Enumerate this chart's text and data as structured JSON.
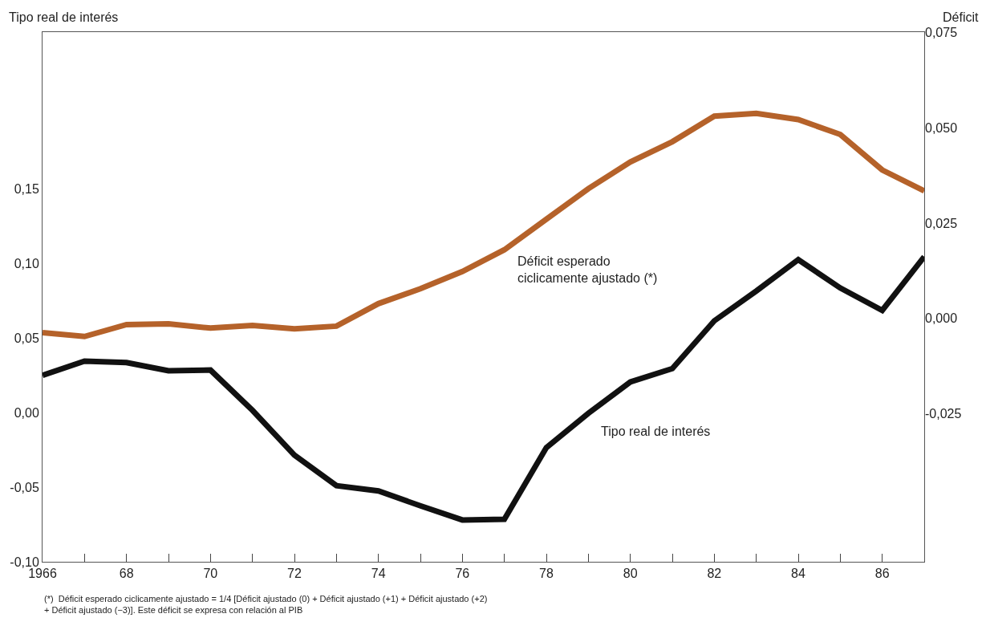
{
  "chart_data": {
    "type": "line",
    "ylabel": "Tipo real de interés",
    "y2label": "Déficit",
    "x": [
      1966,
      1967,
      1968,
      1969,
      1970,
      1971,
      1972,
      1973,
      1974,
      1975,
      1976,
      1977,
      1978,
      1979,
      1980,
      1981,
      1982,
      1983,
      1984,
      1985,
      1986,
      1987
    ],
    "series": [
      {
        "name": "Déficit esperado\nciclicamente ajustado (*)",
        "color": "#b5622a",
        "axis": "y2",
        "values": [
          -0.0037,
          -0.0047,
          -0.0016,
          -0.0014,
          -0.0025,
          -0.0018,
          -0.0027,
          -0.002,
          0.0039,
          0.0078,
          0.0123,
          0.018,
          0.026,
          0.034,
          0.041,
          0.0463,
          0.053,
          0.0537,
          0.0521,
          0.0482,
          0.0389,
          0.0334
        ]
      },
      {
        "name": "Tipo real de interés",
        "color": "#111111",
        "values": [
          0.025,
          0.0345,
          0.0335,
          0.028,
          0.0285,
          0.0015,
          -0.0285,
          -0.049,
          -0.0525,
          -0.0625,
          -0.072,
          -0.0715,
          -0.0235,
          -0.0005,
          0.0205,
          0.0295,
          0.0615,
          0.0815,
          0.1025,
          0.0835,
          0.0685,
          0.1045
        ]
      }
    ],
    "xlim": [
      1966,
      1987
    ],
    "xticks": [
      {
        "value": 1966,
        "label": "1966"
      },
      {
        "value": 1967,
        "label": null
      },
      {
        "value": 1968,
        "label": "68"
      },
      {
        "value": 1969,
        "label": null
      },
      {
        "value": 1970,
        "label": "70"
      },
      {
        "value": 1971,
        "label": null
      },
      {
        "value": 1972,
        "label": "72"
      },
      {
        "value": 1973,
        "label": null
      },
      {
        "value": 1974,
        "label": "74"
      },
      {
        "value": 1975,
        "label": null
      },
      {
        "value": 1976,
        "label": "76"
      },
      {
        "value": 1977,
        "label": null
      },
      {
        "value": 1978,
        "label": "78"
      },
      {
        "value": 1979,
        "label": null
      },
      {
        "value": 1980,
        "label": "80"
      },
      {
        "value": 1981,
        "label": null
      },
      {
        "value": 1982,
        "label": "82"
      },
      {
        "value": 1983,
        "label": null
      },
      {
        "value": 1984,
        "label": "84"
      },
      {
        "value": 1985,
        "label": null
      },
      {
        "value": 1986,
        "label": "86"
      },
      {
        "value": 1987,
        "label": null
      }
    ],
    "ylim": [
      -0.1,
      0.255
    ],
    "yticks": [
      {
        "value": 0.15,
        "label": "0,15"
      },
      {
        "value": 0.1,
        "label": "0,10"
      },
      {
        "value": 0.05,
        "label": "0,05"
      },
      {
        "value": 0.0,
        "label": "0,00"
      },
      {
        "value": -0.05,
        "label": "-0,05"
      },
      {
        "value": -0.1,
        "label": "-0,10"
      }
    ],
    "y2lim": [
      -0.0637,
      0.075
    ],
    "y2ticks": [
      {
        "value": 0.075,
        "label": "0,075"
      },
      {
        "value": 0.05,
        "label": "0,050"
      },
      {
        "value": 0.025,
        "label": "0,025"
      },
      {
        "value": 0.0,
        "label": "0,000"
      },
      {
        "value": -0.025,
        "label": "-0,025"
      }
    ],
    "annotations": [
      "(*)  Déficit esperado ciclicamente ajustado = 1/4 [Déficit ajustado (0) + Déficit ajustado (+1) + Déficit ajustado (+2)\n+ Déficit ajustado (−3)]. Este déficit se expresa con relación al PIB"
    ],
    "legend": false,
    "marker": "none",
    "line_style": "solid"
  }
}
